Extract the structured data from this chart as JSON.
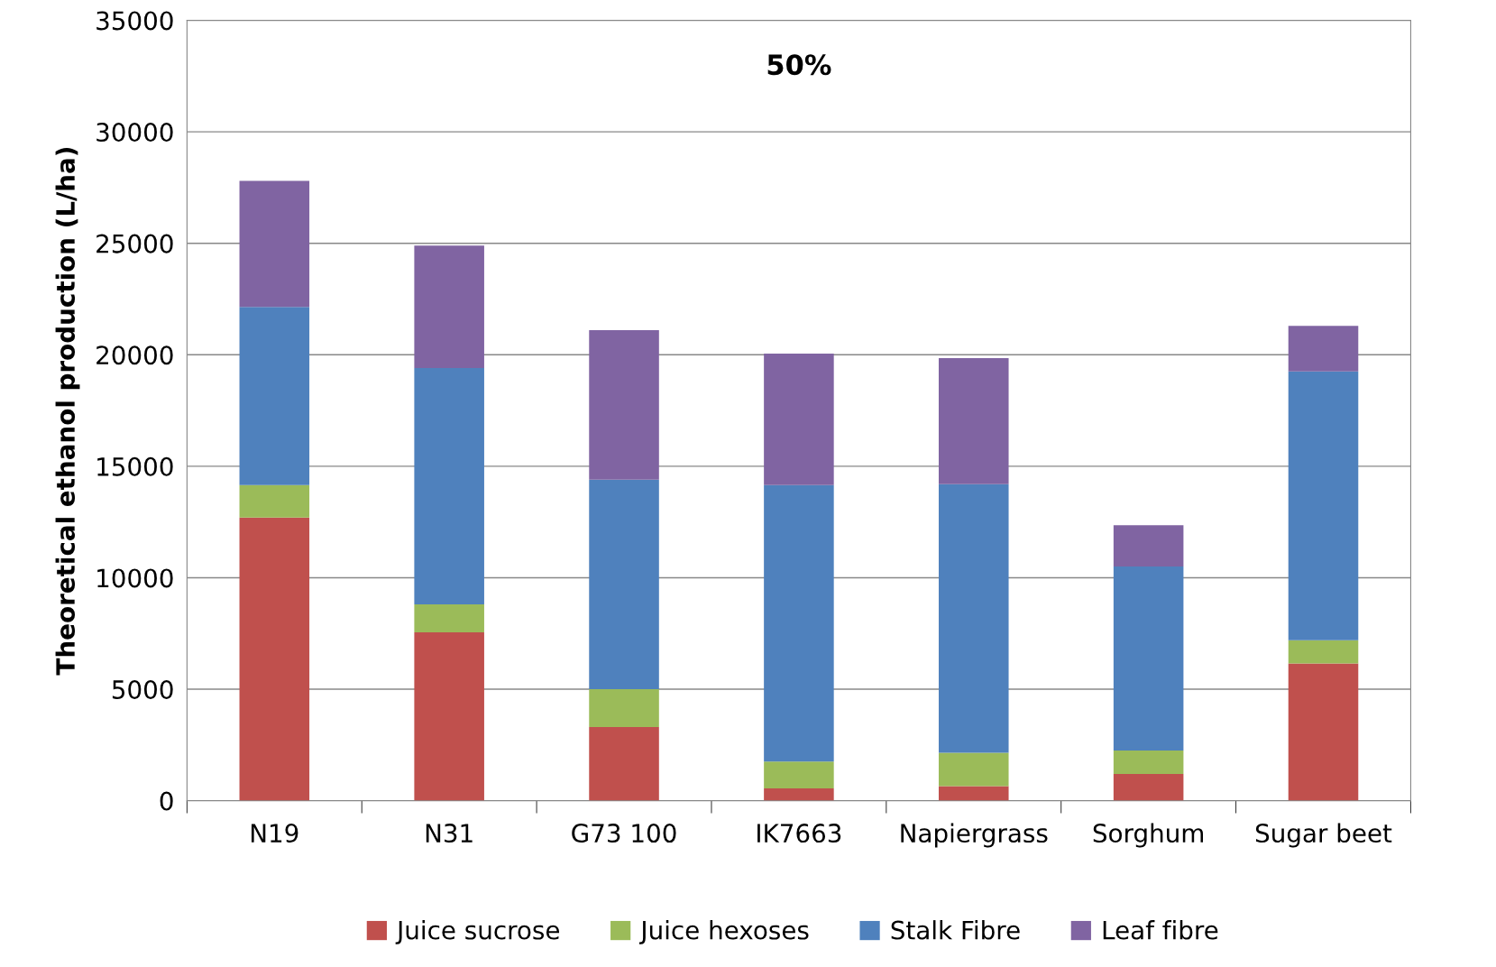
{
  "chart_data": {
    "type": "bar",
    "stacked": true,
    "title": "50%",
    "ylabel": "Theoretical ethanol production (L/ha)",
    "categories": [
      "N19",
      "N31",
      "G73 100",
      "IK7663",
      "Napiergrass",
      "Sorghum",
      "Sugar beet"
    ],
    "series": [
      {
        "name": "Juice sucrose",
        "color": "#c0504d",
        "values": [
          12700,
          7550,
          3300,
          550,
          650,
          1200,
          6150
        ]
      },
      {
        "name": "Juice hexoses",
        "color": "#9bbb59",
        "values": [
          1450,
          1250,
          1700,
          1200,
          1500,
          1050,
          1050
        ]
      },
      {
        "name": "Stalk Fibre",
        "color": "#4f81bd",
        "values": [
          8000,
          10600,
          9400,
          12400,
          12050,
          8250,
          12050
        ]
      },
      {
        "name": "Leaf fibre",
        "color": "#8064a2",
        "values": [
          5650,
          5500,
          6700,
          5900,
          5650,
          1850,
          2050
        ]
      }
    ],
    "ylim": [
      0,
      35000
    ],
    "yticks": [
      0,
      5000,
      10000,
      15000,
      20000,
      25000,
      30000,
      35000
    ],
    "grid": "y",
    "legend": "bottom"
  }
}
